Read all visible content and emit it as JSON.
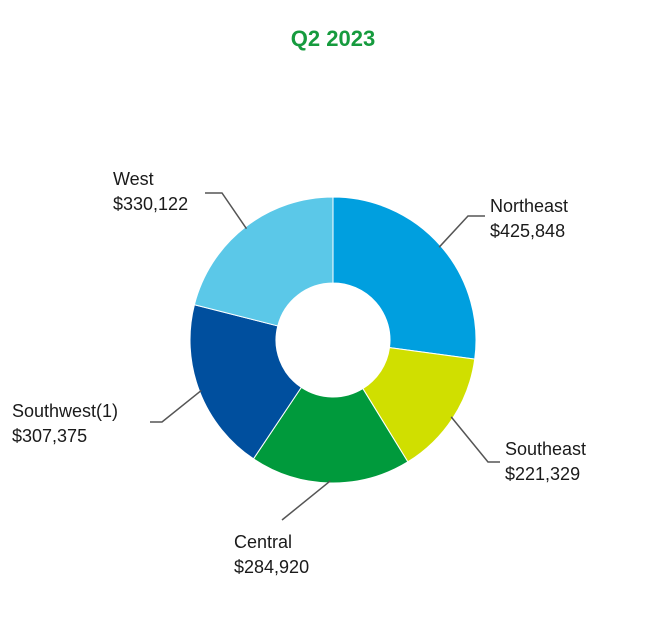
{
  "chart_data": {
    "type": "donut",
    "title": "Q2 2023",
    "categories": [
      "Northeast",
      "Southeast",
      "Central",
      "Southwest(1)",
      "West"
    ],
    "values": [
      425848,
      221329,
      284920,
      307375,
      330122
    ],
    "value_labels": [
      "$425,848",
      "$221,329",
      "$284,920",
      "$307,375",
      "$330,122"
    ],
    "colors": [
      "#009fdf",
      "#d0df00",
      "#009a3c",
      "#004f9e",
      "#5bc8e8"
    ]
  }
}
